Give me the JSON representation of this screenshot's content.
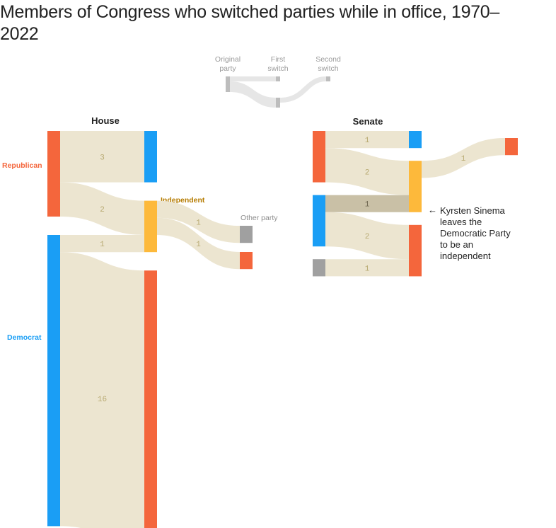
{
  "title": "Members of Congress who switched parties while in office, 1970–2022",
  "legend": {
    "original_line1": "Original",
    "original_line2": "party",
    "first_line1": "First",
    "first_line2": "switch",
    "second_line1": "Second",
    "second_line2": "switch"
  },
  "colors": {
    "republican": "#f4663c",
    "democrat": "#1a9ef5",
    "independent": "#fdb93b",
    "other": "#a0a0a0",
    "flow": "#ece5d0",
    "flow_highlight": "#c9c0a6",
    "legend_node": "#bdbdbd",
    "legend_flow": "#e6e6e6",
    "republican_label": "#f4663c",
    "democrat_label": "#1a9ef5",
    "independent_label": "#b57b00",
    "other_label": "#8c8c8c"
  },
  "labels": {
    "republican": "Republican",
    "democrat": "Democrat",
    "independent": "Independent",
    "other_party": "Other party"
  },
  "annotation": {
    "arrow": "←",
    "line1": "Kyrsten Sinema",
    "line2": "leaves the",
    "line3": "Democratic Party",
    "line4": "to be an",
    "line5": "independent"
  },
  "chart_data": [
    {
      "type": "sankey",
      "title": "House",
      "flows": [
        {
          "from": "Republican",
          "to": "Democrat",
          "value": 3,
          "label": "3"
        },
        {
          "from": "Republican",
          "to": "Independent",
          "value": 2,
          "label": "2"
        },
        {
          "from": "Democrat",
          "to": "Independent",
          "value": 1,
          "label": "1"
        },
        {
          "from": "Democrat",
          "to": "Republican",
          "value": 16,
          "label": "16"
        },
        {
          "from": "Independent",
          "to": "Other party",
          "value": 1,
          "label": "1",
          "stage": "second switch"
        },
        {
          "from": "Independent",
          "to": "Republican",
          "value": 1,
          "label": "1",
          "stage": "second switch"
        }
      ]
    },
    {
      "type": "sankey",
      "title": "Senate",
      "flows": [
        {
          "from": "Republican",
          "to": "Democrat",
          "value": 1,
          "label": "1"
        },
        {
          "from": "Republican",
          "to": "Independent",
          "value": 2,
          "label": "2"
        },
        {
          "from": "Democrat",
          "to": "Independent",
          "value": 1,
          "label": "1",
          "highlight": true
        },
        {
          "from": "Democrat",
          "to": "Republican",
          "value": 2,
          "label": "2"
        },
        {
          "from": "Other party",
          "to": "Republican",
          "value": 1,
          "label": "1"
        },
        {
          "from": "Independent",
          "to": "Republican",
          "value": 1,
          "label": "1",
          "stage": "second switch"
        }
      ]
    }
  ]
}
